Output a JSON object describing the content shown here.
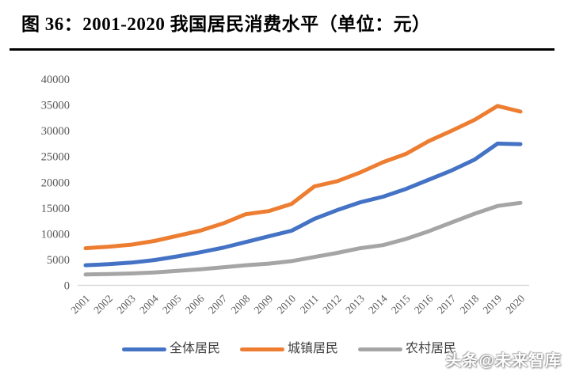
{
  "title": "图 36：2001-2020 我国居民消费水平（单位：元）",
  "watermark": "头条@未来智库",
  "colors": {
    "overall": "#4472C4",
    "urban": "#ED7D31",
    "rural": "#A5A5A5",
    "axis_text": "#595959",
    "axis_line": "#D9D9D9",
    "rule": "#000000"
  },
  "chart_data": {
    "type": "line",
    "title": "图 36：2001-2020 我国居民消费水平（单位：元）",
    "xlabel": "",
    "ylabel": "",
    "ylim": [
      0,
      40000
    ],
    "y_ticks": [
      0,
      5000,
      10000,
      15000,
      20000,
      25000,
      30000,
      35000,
      40000
    ],
    "grid": false,
    "legend_position": "bottom",
    "categories": [
      "2001",
      "2002",
      "2003",
      "2004",
      "2005",
      "2006",
      "2007",
      "2008",
      "2009",
      "2010",
      "2011",
      "2012",
      "2013",
      "2014",
      "2015",
      "2016",
      "2017",
      "2018",
      "2019",
      "2020"
    ],
    "series": [
      {
        "name": "全体居民",
        "key": "overall",
        "color": "#4472C4",
        "values": [
          3900,
          4100,
          4400,
          4900,
          5600,
          6400,
          7300,
          8400,
          9500,
          10600,
          12900,
          14600,
          16100,
          17200,
          18700,
          20500,
          22300,
          24400,
          27500,
          27400
        ]
      },
      {
        "name": "城镇居民",
        "key": "urban",
        "color": "#ED7D31",
        "values": [
          7200,
          7500,
          7900,
          8600,
          9600,
          10600,
          12000,
          13800,
          14400,
          15800,
          19200,
          20200,
          21900,
          23900,
          25500,
          28000,
          30000,
          32100,
          34800,
          33700
        ]
      },
      {
        "name": "农村居民",
        "key": "rural",
        "color": "#A5A5A5",
        "values": [
          2100,
          2200,
          2300,
          2500,
          2800,
          3100,
          3500,
          3900,
          4200,
          4700,
          5500,
          6300,
          7200,
          7800,
          9000,
          10500,
          12200,
          13900,
          15400,
          16000
        ]
      }
    ]
  }
}
